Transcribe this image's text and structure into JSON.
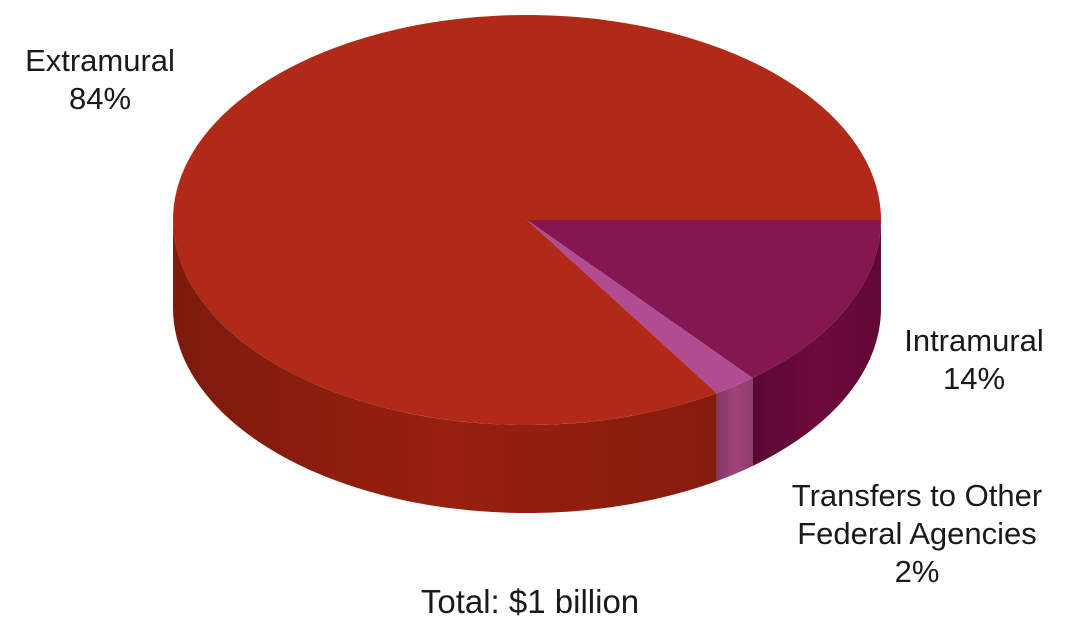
{
  "chart_data": {
    "type": "pie",
    "style": "3d",
    "title": "",
    "footer": "Total: $1 billion",
    "slices": [
      {
        "label": "Extramural",
        "value": 84,
        "value_label": "84%",
        "color": "#b02a17",
        "side_color": "#98200f"
      },
      {
        "label": "Intramural",
        "value": 14,
        "value_label": "14%",
        "color": "#841650",
        "side_color": "#6e0a3c"
      },
      {
        "label": "Transfers to Other Federal Agencies",
        "label_lines": [
          "Transfers to Other",
          "Federal Agencies"
        ],
        "value": 2,
        "value_label": "2%",
        "color": "#b24c92",
        "side_color": "#a0447d"
      }
    ]
  }
}
